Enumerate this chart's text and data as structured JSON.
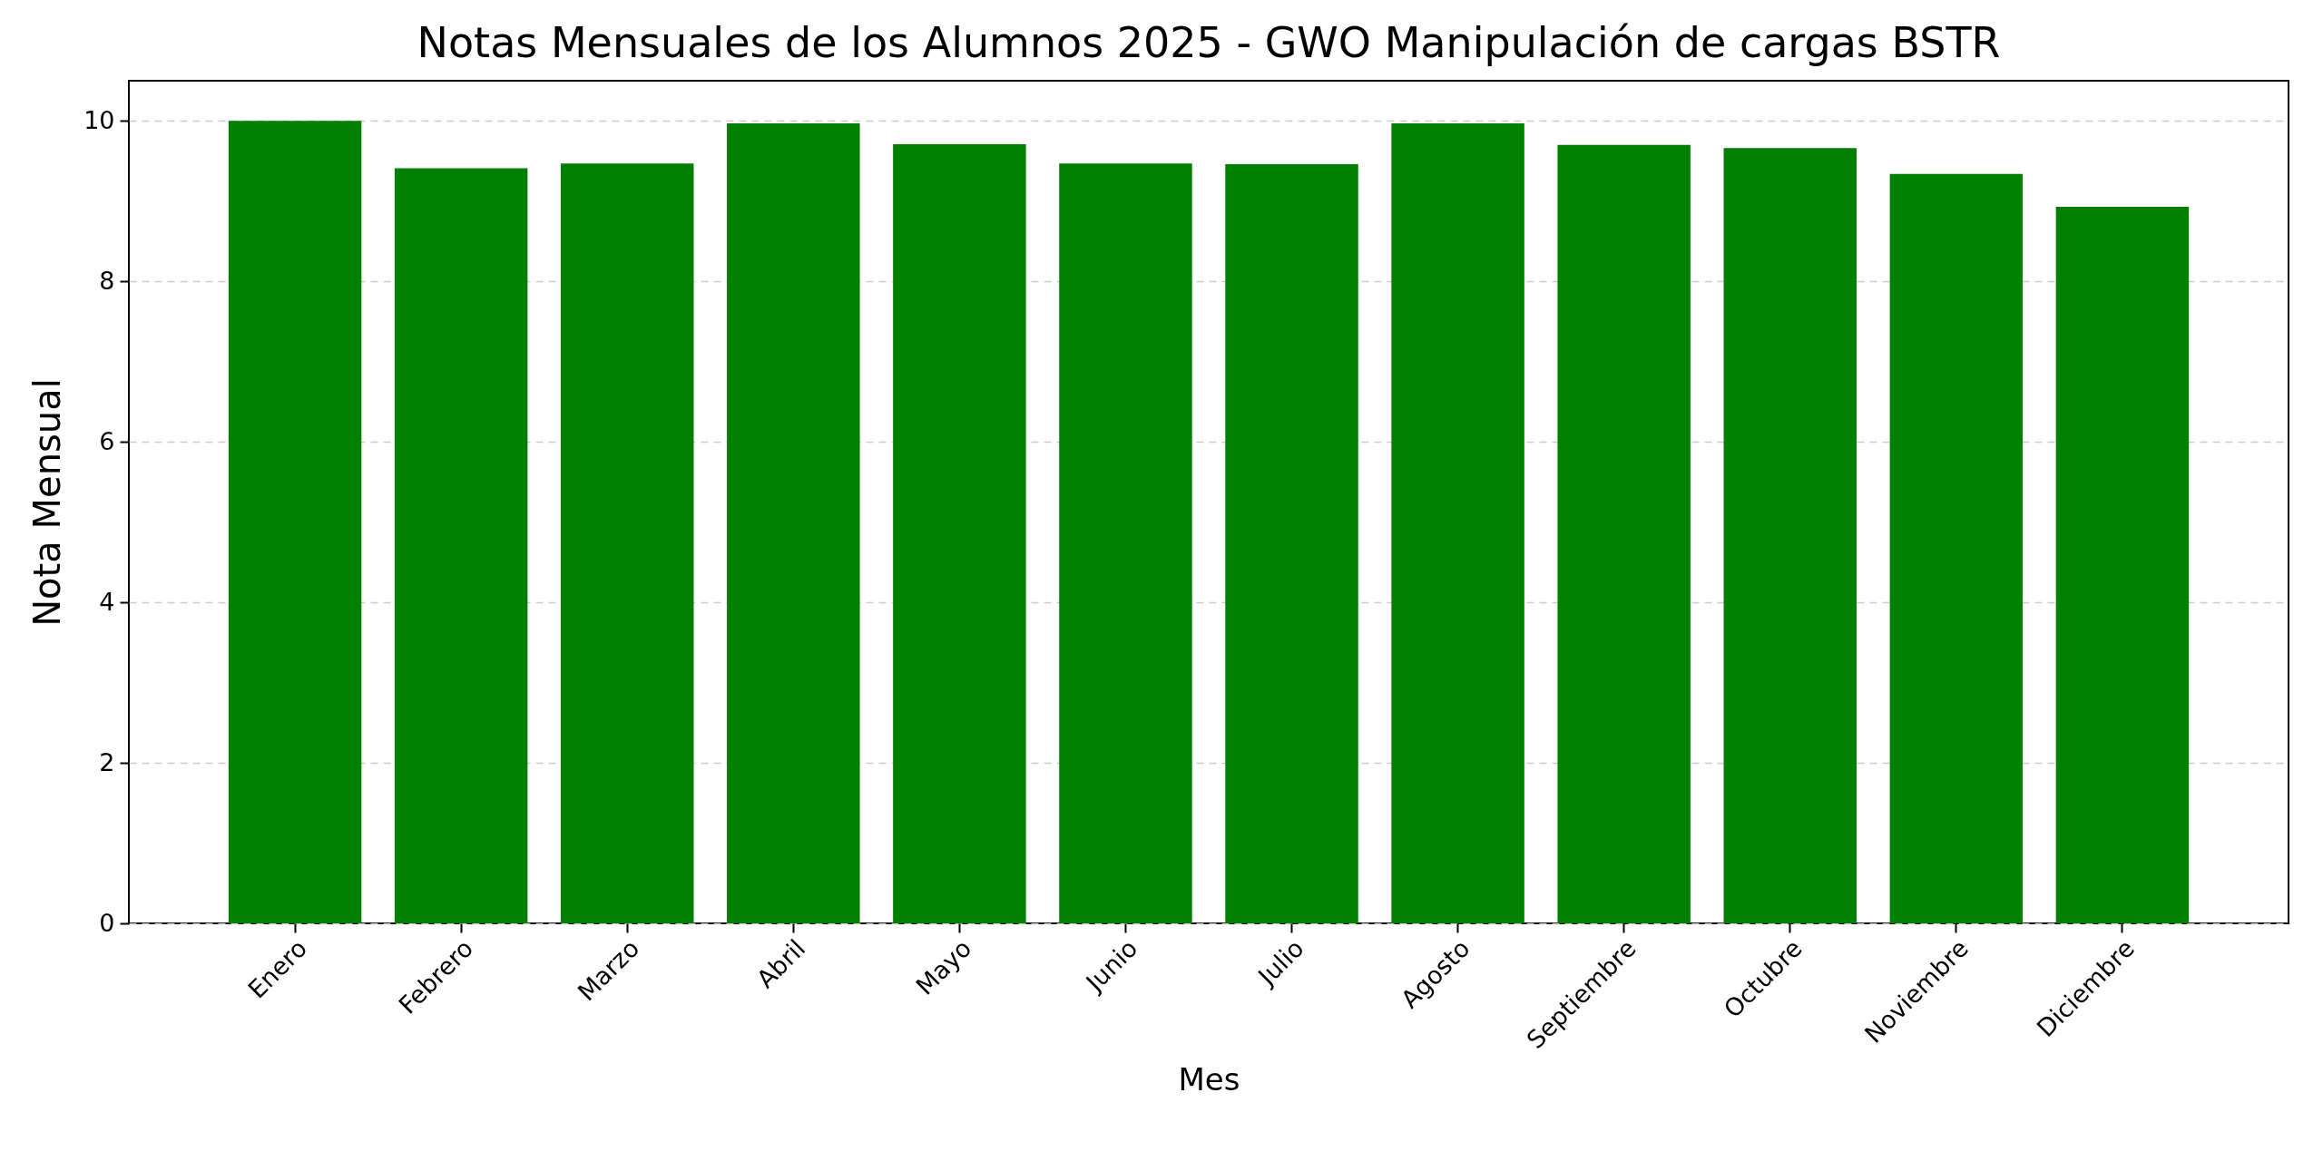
{
  "chart_data": {
    "type": "bar",
    "title": "Notas Mensuales de los Alumnos 2025 - GWO Manipulación de cargas BSTR",
    "xlabel": "Mes",
    "ylabel": "Nota Mensual",
    "categories": [
      "Enero",
      "Febrero",
      "Marzo",
      "Abril",
      "Mayo",
      "Junio",
      "Julio",
      "Agosto",
      "Septiembre",
      "Octubre",
      "Noviembre",
      "Diciembre"
    ],
    "values": [
      10.0,
      9.41,
      9.47,
      9.97,
      9.71,
      9.47,
      9.46,
      9.97,
      9.7,
      9.66,
      9.34,
      8.93
    ],
    "color": "#008000",
    "ylim": [
      0,
      10.5
    ],
    "yticks": [
      0,
      2,
      4,
      6,
      8,
      10
    ],
    "grid": "y"
  }
}
